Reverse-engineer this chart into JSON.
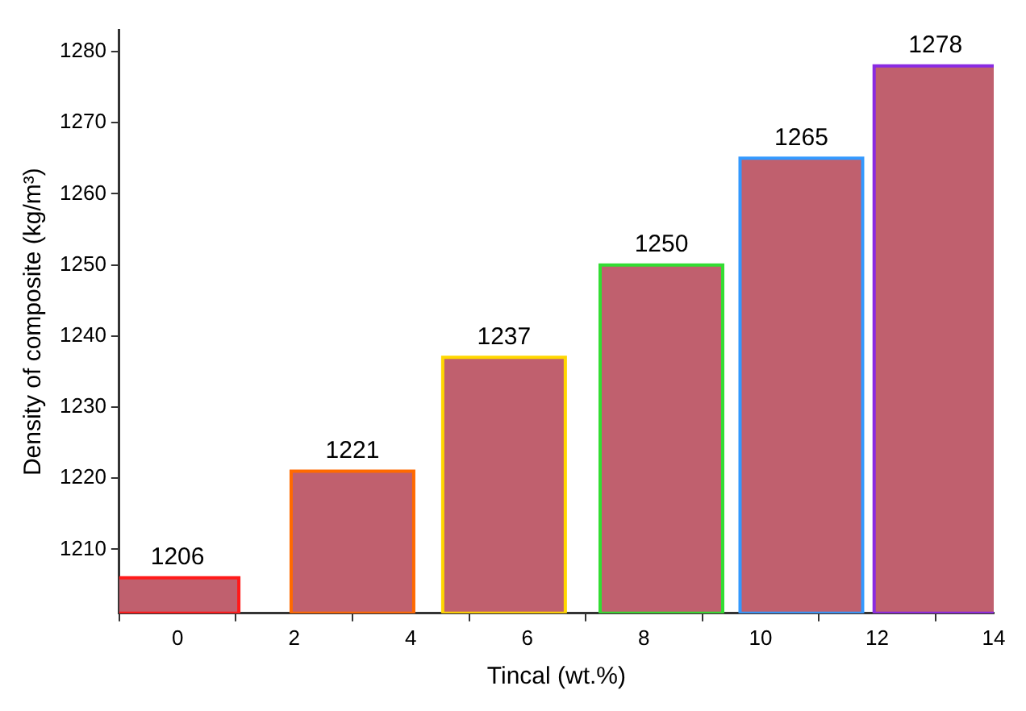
{
  "chart_data": {
    "type": "bar",
    "xlabel": "Tincal (wt.%)",
    "ylabel": "Density of composite (kg/m³)",
    "x": [
      0,
      3,
      5.6,
      8.3,
      10.7,
      13
    ],
    "values": [
      1206,
      1221,
      1237,
      1250,
      1265,
      1278
    ],
    "color": "#c0606e",
    "xlim": [
      -1,
      14
    ],
    "xticks": [
      0,
      2,
      4,
      6,
      8,
      10,
      12,
      14
    ],
    "ylim": [
      1201,
      1283
    ],
    "yticks": [
      1210,
      1220,
      1230,
      1240,
      1250,
      1260,
      1270,
      1280
    ],
    "grid": false,
    "legend": false,
    "data_labels": true
  }
}
